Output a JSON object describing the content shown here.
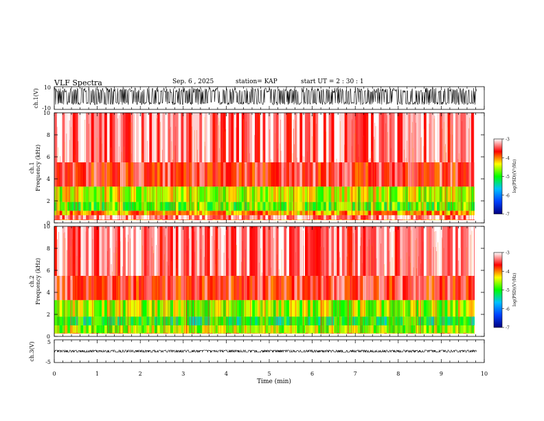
{
  "header": {
    "title": "VLF Spectra",
    "date": "Sep. 6 , 2025",
    "station": "station= KAP",
    "start": "start  UT =   2 : 30 : 1"
  },
  "chart_data": [
    {
      "type": "line",
      "name": "ch1-waveform",
      "ylabel": "ch.1(V)",
      "ylim": [
        -10,
        10
      ],
      "tick_labels": [
        "10",
        "-10"
      ],
      "xlim": [
        0,
        10
      ],
      "data_end_min": 9.82,
      "description_values": {
        "typical_envelope_V": [
          -6,
          9
        ]
      }
    },
    {
      "type": "heatmap",
      "name": "ch1-spectrogram",
      "ylabel": "ch.1\nFrequency (kHz)",
      "ylabel_lines": [
        "ch.1",
        "Frequency (kHz)"
      ],
      "ylim": [
        0,
        10
      ],
      "yticks": [
        0,
        2,
        4,
        6,
        8,
        10
      ],
      "xlim": [
        0,
        10
      ],
      "data_end_min": 9.82,
      "bands_kHz": [
        {
          "range": [
            0.0,
            0.3
          ],
          "level": -4.0
        },
        {
          "range": [
            0.3,
            0.7
          ],
          "level": -3.2
        },
        {
          "range": [
            0.7,
            1.1
          ],
          "level": -4.1
        },
        {
          "range": [
            1.1,
            1.9
          ],
          "level": -4.8
        },
        {
          "range": [
            1.9,
            3.3
          ],
          "level": -4.5
        },
        {
          "range": [
            3.3,
            5.5
          ],
          "level": -3.6
        },
        {
          "range": [
            5.5,
            10.0
          ],
          "level": -3.3
        }
      ],
      "colorbar": {
        "label": "log(PSD)(V²/Hz)",
        "range": [
          -7,
          -3
        ],
        "tick_labels": [
          "-3",
          "-4",
          "-5",
          "-6",
          "-7"
        ],
        "colors": [
          "#000080",
          "#0040ff",
          "#00c0ff",
          "#00ff00",
          "#ffff00",
          "#ff0000",
          "#ffffff"
        ]
      }
    },
    {
      "type": "heatmap",
      "name": "ch2-spectrogram",
      "ylabel": "ch.2\nFrequency (kHz)",
      "ylabel_lines": [
        "ch.2",
        "Frequency (kHz)"
      ],
      "ylim": [
        0,
        10
      ],
      "yticks": [
        0,
        2,
        4,
        6,
        8,
        10
      ],
      "xlim": [
        0,
        10
      ],
      "data_end_min": 9.82,
      "bands_kHz": [
        {
          "range": [
            0.0,
            0.3
          ],
          "level": -4.2
        },
        {
          "range": [
            0.3,
            1.0
          ],
          "level": -4.6
        },
        {
          "range": [
            1.0,
            1.8
          ],
          "level": -5.1
        },
        {
          "range": [
            1.8,
            3.3
          ],
          "level": -4.6
        },
        {
          "range": [
            3.3,
            5.5
          ],
          "level": -3.6
        },
        {
          "range": [
            5.5,
            10.0
          ],
          "level": -3.3
        }
      ],
      "colorbar": {
        "label": "log(PSD)(V²/Hz)",
        "range": [
          -7,
          -3
        ],
        "tick_labels": [
          "-3",
          "-4",
          "-5",
          "-6",
          "-7"
        ],
        "colors": [
          "#000080",
          "#0040ff",
          "#00c0ff",
          "#00ff00",
          "#ffff00",
          "#ff0000",
          "#ffffff"
        ]
      }
    },
    {
      "type": "line",
      "name": "ch3-waveform",
      "ylabel": "ch.3(V)",
      "ylim": [
        -5,
        5
      ],
      "tick_labels": [
        "5",
        "-5"
      ],
      "xlim": [
        0,
        10
      ],
      "data_end_min": 9.82,
      "description_values": {
        "typical_envelope_V": [
          -0.5,
          0.5
        ]
      }
    }
  ],
  "x_axis": {
    "label": "Time (min)",
    "ticks": [
      "0",
      "1",
      "2",
      "3",
      "4",
      "5",
      "6",
      "7",
      "8",
      "9",
      "10"
    ]
  }
}
